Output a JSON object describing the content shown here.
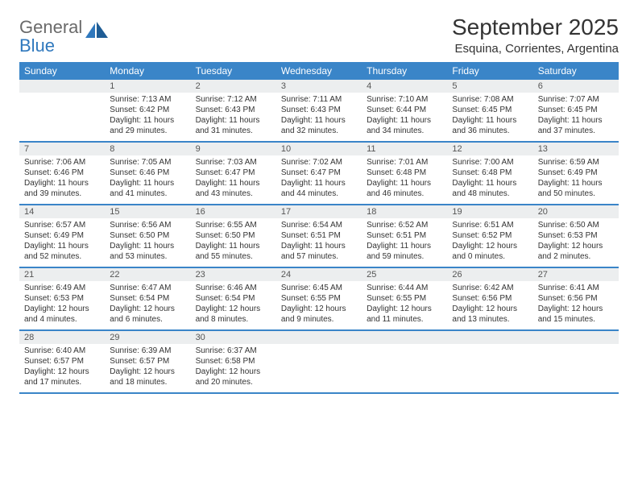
{
  "brand": {
    "name_gray": "General",
    "name_blue": "Blue"
  },
  "colors": {
    "header_bg": "#3a85c8",
    "header_text": "#ffffff",
    "daynum_bg": "#eceeef",
    "border": "#3a85c8",
    "text": "#333333"
  },
  "title": "September 2025",
  "location": "Esquina, Corrientes, Argentina",
  "day_headers": [
    "Sunday",
    "Monday",
    "Tuesday",
    "Wednesday",
    "Thursday",
    "Friday",
    "Saturday"
  ],
  "weeks": [
    [
      null,
      {
        "n": "1",
        "sunrise": "Sunrise: 7:13 AM",
        "sunset": "Sunset: 6:42 PM",
        "day1": "Daylight: 11 hours",
        "day2": "and 29 minutes."
      },
      {
        "n": "2",
        "sunrise": "Sunrise: 7:12 AM",
        "sunset": "Sunset: 6:43 PM",
        "day1": "Daylight: 11 hours",
        "day2": "and 31 minutes."
      },
      {
        "n": "3",
        "sunrise": "Sunrise: 7:11 AM",
        "sunset": "Sunset: 6:43 PM",
        "day1": "Daylight: 11 hours",
        "day2": "and 32 minutes."
      },
      {
        "n": "4",
        "sunrise": "Sunrise: 7:10 AM",
        "sunset": "Sunset: 6:44 PM",
        "day1": "Daylight: 11 hours",
        "day2": "and 34 minutes."
      },
      {
        "n": "5",
        "sunrise": "Sunrise: 7:08 AM",
        "sunset": "Sunset: 6:45 PM",
        "day1": "Daylight: 11 hours",
        "day2": "and 36 minutes."
      },
      {
        "n": "6",
        "sunrise": "Sunrise: 7:07 AM",
        "sunset": "Sunset: 6:45 PM",
        "day1": "Daylight: 11 hours",
        "day2": "and 37 minutes."
      }
    ],
    [
      {
        "n": "7",
        "sunrise": "Sunrise: 7:06 AM",
        "sunset": "Sunset: 6:46 PM",
        "day1": "Daylight: 11 hours",
        "day2": "and 39 minutes."
      },
      {
        "n": "8",
        "sunrise": "Sunrise: 7:05 AM",
        "sunset": "Sunset: 6:46 PM",
        "day1": "Daylight: 11 hours",
        "day2": "and 41 minutes."
      },
      {
        "n": "9",
        "sunrise": "Sunrise: 7:03 AM",
        "sunset": "Sunset: 6:47 PM",
        "day1": "Daylight: 11 hours",
        "day2": "and 43 minutes."
      },
      {
        "n": "10",
        "sunrise": "Sunrise: 7:02 AM",
        "sunset": "Sunset: 6:47 PM",
        "day1": "Daylight: 11 hours",
        "day2": "and 44 minutes."
      },
      {
        "n": "11",
        "sunrise": "Sunrise: 7:01 AM",
        "sunset": "Sunset: 6:48 PM",
        "day1": "Daylight: 11 hours",
        "day2": "and 46 minutes."
      },
      {
        "n": "12",
        "sunrise": "Sunrise: 7:00 AM",
        "sunset": "Sunset: 6:48 PM",
        "day1": "Daylight: 11 hours",
        "day2": "and 48 minutes."
      },
      {
        "n": "13",
        "sunrise": "Sunrise: 6:59 AM",
        "sunset": "Sunset: 6:49 PM",
        "day1": "Daylight: 11 hours",
        "day2": "and 50 minutes."
      }
    ],
    [
      {
        "n": "14",
        "sunrise": "Sunrise: 6:57 AM",
        "sunset": "Sunset: 6:49 PM",
        "day1": "Daylight: 11 hours",
        "day2": "and 52 minutes."
      },
      {
        "n": "15",
        "sunrise": "Sunrise: 6:56 AM",
        "sunset": "Sunset: 6:50 PM",
        "day1": "Daylight: 11 hours",
        "day2": "and 53 minutes."
      },
      {
        "n": "16",
        "sunrise": "Sunrise: 6:55 AM",
        "sunset": "Sunset: 6:50 PM",
        "day1": "Daylight: 11 hours",
        "day2": "and 55 minutes."
      },
      {
        "n": "17",
        "sunrise": "Sunrise: 6:54 AM",
        "sunset": "Sunset: 6:51 PM",
        "day1": "Daylight: 11 hours",
        "day2": "and 57 minutes."
      },
      {
        "n": "18",
        "sunrise": "Sunrise: 6:52 AM",
        "sunset": "Sunset: 6:51 PM",
        "day1": "Daylight: 11 hours",
        "day2": "and 59 minutes."
      },
      {
        "n": "19",
        "sunrise": "Sunrise: 6:51 AM",
        "sunset": "Sunset: 6:52 PM",
        "day1": "Daylight: 12 hours",
        "day2": "and 0 minutes."
      },
      {
        "n": "20",
        "sunrise": "Sunrise: 6:50 AM",
        "sunset": "Sunset: 6:53 PM",
        "day1": "Daylight: 12 hours",
        "day2": "and 2 minutes."
      }
    ],
    [
      {
        "n": "21",
        "sunrise": "Sunrise: 6:49 AM",
        "sunset": "Sunset: 6:53 PM",
        "day1": "Daylight: 12 hours",
        "day2": "and 4 minutes."
      },
      {
        "n": "22",
        "sunrise": "Sunrise: 6:47 AM",
        "sunset": "Sunset: 6:54 PM",
        "day1": "Daylight: 12 hours",
        "day2": "and 6 minutes."
      },
      {
        "n": "23",
        "sunrise": "Sunrise: 6:46 AM",
        "sunset": "Sunset: 6:54 PM",
        "day1": "Daylight: 12 hours",
        "day2": "and 8 minutes."
      },
      {
        "n": "24",
        "sunrise": "Sunrise: 6:45 AM",
        "sunset": "Sunset: 6:55 PM",
        "day1": "Daylight: 12 hours",
        "day2": "and 9 minutes."
      },
      {
        "n": "25",
        "sunrise": "Sunrise: 6:44 AM",
        "sunset": "Sunset: 6:55 PM",
        "day1": "Daylight: 12 hours",
        "day2": "and 11 minutes."
      },
      {
        "n": "26",
        "sunrise": "Sunrise: 6:42 AM",
        "sunset": "Sunset: 6:56 PM",
        "day1": "Daylight: 12 hours",
        "day2": "and 13 minutes."
      },
      {
        "n": "27",
        "sunrise": "Sunrise: 6:41 AM",
        "sunset": "Sunset: 6:56 PM",
        "day1": "Daylight: 12 hours",
        "day2": "and 15 minutes."
      }
    ],
    [
      {
        "n": "28",
        "sunrise": "Sunrise: 6:40 AM",
        "sunset": "Sunset: 6:57 PM",
        "day1": "Daylight: 12 hours",
        "day2": "and 17 minutes."
      },
      {
        "n": "29",
        "sunrise": "Sunrise: 6:39 AM",
        "sunset": "Sunset: 6:57 PM",
        "day1": "Daylight: 12 hours",
        "day2": "and 18 minutes."
      },
      {
        "n": "30",
        "sunrise": "Sunrise: 6:37 AM",
        "sunset": "Sunset: 6:58 PM",
        "day1": "Daylight: 12 hours",
        "day2": "and 20 minutes."
      },
      null,
      null,
      null,
      null
    ]
  ]
}
